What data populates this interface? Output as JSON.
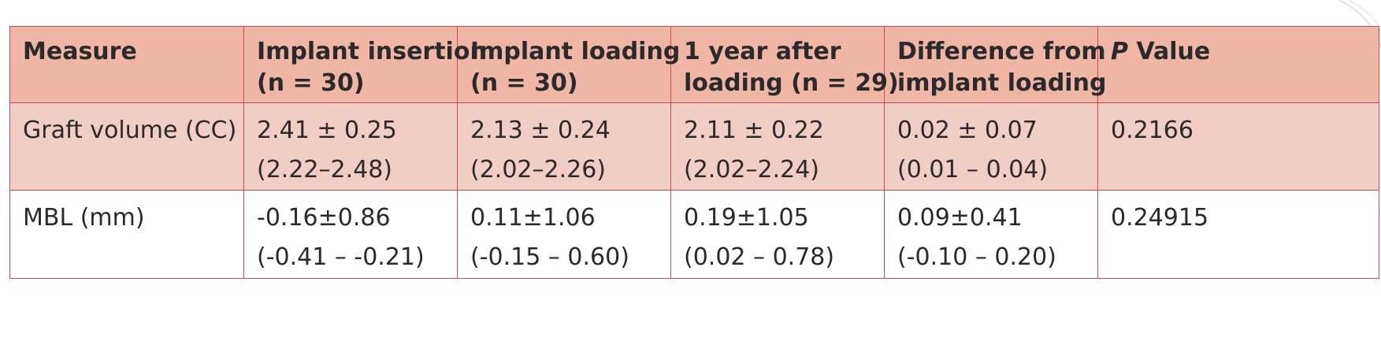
{
  "table": {
    "headers": [
      {
        "line1": "Measure",
        "line2": ""
      },
      {
        "line1": "Implant insertion",
        "line2": "(n = 30)"
      },
      {
        "line1": "Implant loading",
        "line2": "(n = 30)"
      },
      {
        "line1": "1 year after",
        "line2": "loading (n = 29)"
      },
      {
        "line1": "Difference from",
        "line2": "implant loading"
      },
      {
        "line1_italic": "P",
        "line1": " Value",
        "line2": ""
      }
    ],
    "rows": [
      {
        "measure": "Graft volume (CC)",
        "cells": [
          {
            "mean": "2.41 ± 0.25",
            "range": "(2.22–2.48)"
          },
          {
            "mean": "2.13 ± 0.24",
            "range": "(2.02–2.26)"
          },
          {
            "mean": "2.11 ± 0.22",
            "range": "(2.02–2.24)"
          },
          {
            "mean": "0.02 ± 0.07",
            "range": "(0.01 – 0.04)"
          }
        ],
        "p_value": "0.2166"
      },
      {
        "measure": "MBL (mm)",
        "cells": [
          {
            "mean": "-0.16±0.86",
            "range": "(-0.41 – -0.21)"
          },
          {
            "mean": "0.11±1.06",
            "range": "(-0.15 – 0.60)"
          },
          {
            "mean": "0.19±1.05",
            "range": "(0.02 – 0.78)"
          },
          {
            "mean": "0.09±0.41",
            "range": "(-0.10 – 0.20)"
          }
        ],
        "p_value": "0.24915"
      }
    ]
  }
}
